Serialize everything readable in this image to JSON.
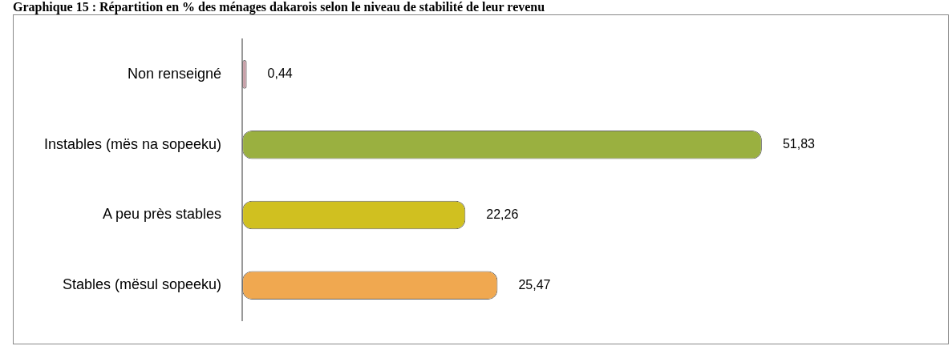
{
  "chart_data": {
    "type": "bar",
    "orientation": "horizontal",
    "title": "Graphique 15 : Répartition en % des ménages dakarois selon le niveau de stabilité de leur revenu",
    "categories": [
      "Non renseigné",
      "Instables (mës na sopeeku)",
      "A peu près stables",
      "Stables (mësul sopeeku)"
    ],
    "values": [
      0.44,
      51.83,
      22.26,
      25.47
    ],
    "value_labels": [
      "0,44",
      "51,83",
      "22,26",
      "25,47"
    ],
    "colors": [
      "#c8a0a8",
      "#9ab040",
      "#d0c020",
      "#f0a850"
    ],
    "tick_labels": "y",
    "grid": false,
    "legend": false
  }
}
